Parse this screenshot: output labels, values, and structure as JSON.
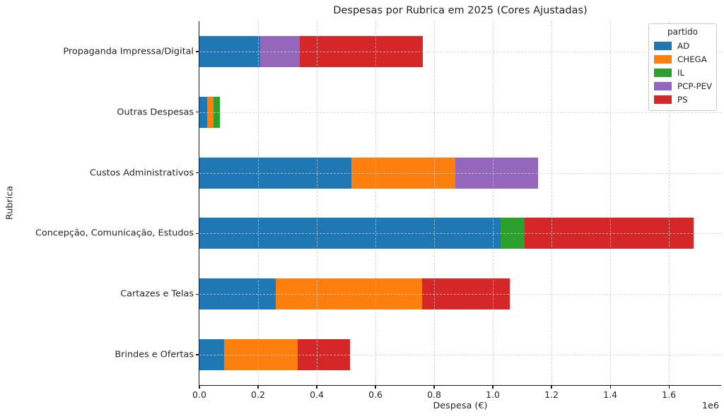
{
  "figure": {
    "kind": "matplotlib-static-chart"
  },
  "chart_data": {
    "type": "bar",
    "variant": "horizontal-stacked",
    "title": "Despesas por Rubrica em 2025 (Cores Ajustadas)",
    "xlabel": "Despesa (€)",
    "ylabel": "Rubrica",
    "offset_label": "1e6",
    "xlim": [
      0,
      1778000
    ],
    "grid": "dashed-both-axes",
    "legend": {
      "title": "partido",
      "position": "upper-right",
      "entries": [
        "AD",
        "CHEGA",
        "IL",
        "PCP-PEV",
        "PS"
      ]
    },
    "xticks": {
      "values": [
        0,
        200000,
        400000,
        600000,
        800000,
        1000000,
        1200000,
        1400000,
        1600000
      ],
      "labels": [
        "0.0",
        "0.2",
        "0.4",
        "0.6",
        "0.8",
        "1.0",
        "1.2",
        "1.4",
        "1.6"
      ]
    },
    "category_order": "top-to-bottom",
    "categories": [
      "Propaganda Impressa/Digital",
      "Outras Despesas",
      "Custos Administrativos",
      "Concepção, Comunicação, Estudos",
      "Cartazes e Telas",
      "Brindes e Ofertas"
    ],
    "series": [
      {
        "name": "AD",
        "color": "#1f77b4",
        "values": [
          207000,
          27000,
          517000,
          1026000,
          260000,
          84000
        ]
      },
      {
        "name": "CHEGA",
        "color": "#ff7f0e",
        "values": [
          0,
          21000,
          356000,
          0,
          498000,
          250000
        ]
      },
      {
        "name": "IL",
        "color": "#2ca02c",
        "values": [
          0,
          21000,
          0,
          82000,
          0,
          0
        ]
      },
      {
        "name": "PCP-PEV",
        "color": "#9467bd",
        "values": [
          135000,
          0,
          281000,
          0,
          0,
          0
        ]
      },
      {
        "name": "PS",
        "color": "#d62728",
        "values": [
          420000,
          0,
          0,
          576000,
          299000,
          179000
        ]
      }
    ]
  }
}
